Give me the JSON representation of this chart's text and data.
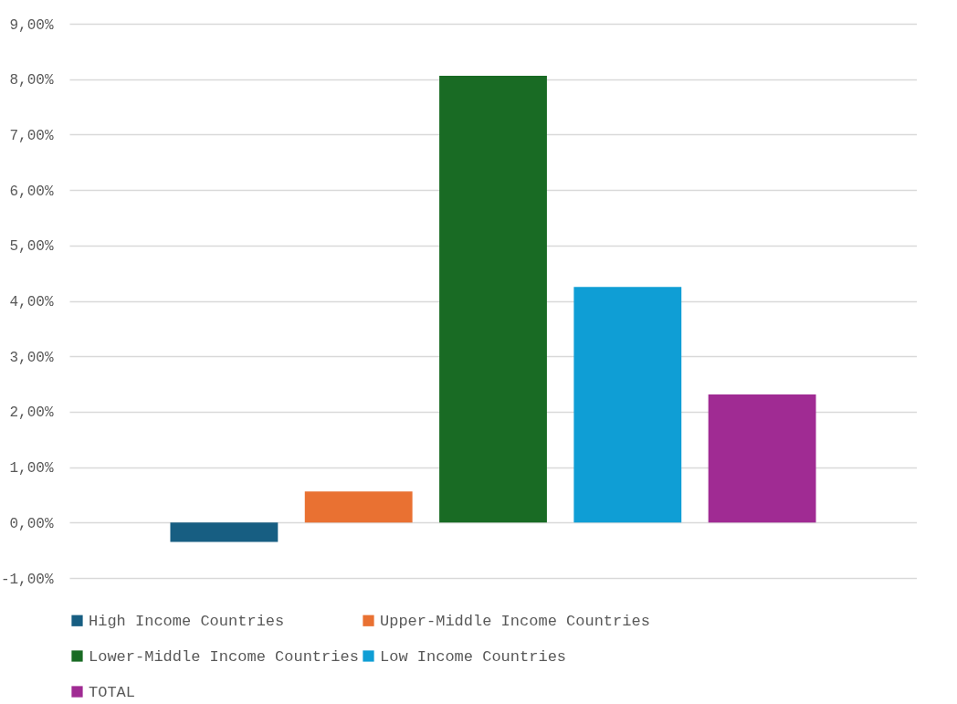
{
  "chart_data": {
    "type": "bar",
    "categories": [
      null
    ],
    "series": [
      {
        "name": "High Income Countries",
        "color": "#175e82",
        "values": [
          -0.35
        ]
      },
      {
        "name": "Upper-Middle Income Countries",
        "color": "#e97132",
        "values": [
          0.56
        ]
      },
      {
        "name": "Lower-Middle Income Countries",
        "color": "#196b24",
        "values": [
          8.06
        ]
      },
      {
        "name": "Low Income Countries",
        "color": "#0f9ed5",
        "values": [
          4.25
        ]
      },
      {
        "name": "TOTAL",
        "color": "#a02b93",
        "values": [
          2.31
        ]
      }
    ],
    "ylim": [
      -1,
      9
    ],
    "yticks": [
      {
        "value": -1,
        "label": "-1,00%"
      },
      {
        "value": 0,
        "label": "0,00%"
      },
      {
        "value": 1,
        "label": "1,00%"
      },
      {
        "value": 2,
        "label": "2,00%"
      },
      {
        "value": 3,
        "label": "3,00%"
      },
      {
        "value": 4,
        "label": "4,00%"
      },
      {
        "value": 5,
        "label": "5,00%"
      },
      {
        "value": 6,
        "label": "6,00%"
      },
      {
        "value": 7,
        "label": "7,00%"
      },
      {
        "value": 8,
        "label": "8,00%"
      },
      {
        "value": 9,
        "label": "9,00%"
      }
    ],
    "grid": true,
    "legend": "bottom",
    "tick_labels": "y"
  }
}
